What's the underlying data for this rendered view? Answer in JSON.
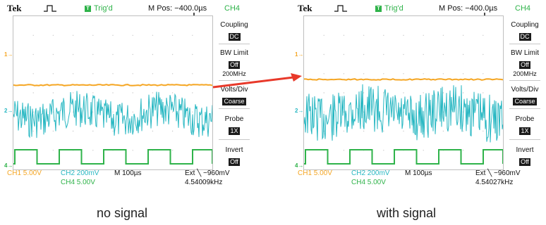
{
  "colors": {
    "ch1": "#f5a623",
    "ch2": "#27b7c2",
    "ch4": "#2fb34a",
    "arrow": "#e8392a"
  },
  "panels": [
    {
      "header": {
        "brand": "Tek",
        "trigger_badge": "T",
        "trigger_status": "Trig'd",
        "position": "M Pos: −400.0µs",
        "channel": "CH4"
      },
      "markers": {
        "ch1": "1→",
        "ch2": "2→",
        "ch4": "4→"
      },
      "menu": {
        "coupling_label": "Coupling",
        "coupling_value": "DC",
        "bw_label": "BW Limit",
        "bw_value": "Off",
        "bw_sub": "200MHz",
        "volts_label": "Volts/Div",
        "volts_value": "Coarse",
        "probe_label": "Probe",
        "probe_value": "1X",
        "invert_label": "Invert",
        "invert_value": "Off"
      },
      "footer": {
        "ch1": "CH1  5.00V",
        "ch2": "CH2  200mV",
        "ch4": "CH4  5.00V",
        "timebase": "M 100µs",
        "ext": "Ext ╲  −960mV",
        "freq": "4.54009kHz"
      },
      "caption": "no signal"
    },
    {
      "header": {
        "brand": "Tek",
        "trigger_badge": "T",
        "trigger_status": "Trig'd",
        "position": "M Pos: −400.0µs",
        "channel": "CH4"
      },
      "markers": {
        "ch1": "1→",
        "ch2": "2→",
        "ch4": "4→"
      },
      "menu": {
        "coupling_label": "Coupling",
        "coupling_value": "DC",
        "bw_label": "BW Limit",
        "bw_value": "Off",
        "bw_sub": "200MHz",
        "volts_label": "Volts/Div",
        "volts_value": "Coarse",
        "probe_label": "Probe",
        "probe_value": "1X",
        "invert_label": "Invert",
        "invert_value": "Off"
      },
      "footer": {
        "ch1": "CH1  5.00V",
        "ch2": "CH2  200mV",
        "ch4": "CH4  5.00V",
        "timebase": "M 100µs",
        "ext": "Ext ╲  −960mV",
        "freq": "4.54027kHz"
      },
      "caption": "with signal"
    }
  ]
}
